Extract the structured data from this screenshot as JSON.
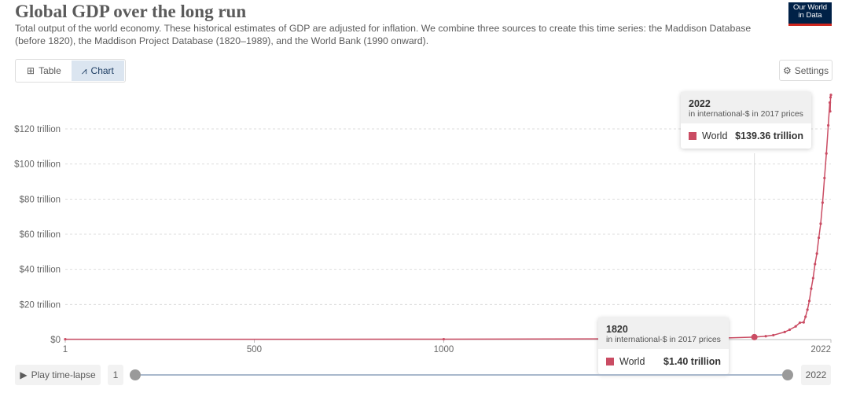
{
  "header": {
    "title": "Global GDP over the long run",
    "subtitle": "Total output of the world economy. These historical estimates of GDP are adjusted for inflation. We combine three sources to create this time series: the Maddison Database (before 1820), the Maddison Project Database (1820–1989), and the World Bank (1990 onward).",
    "logo": "Our World in Data"
  },
  "tabs": [
    {
      "label": "Table",
      "icon": "table-icon"
    },
    {
      "label": "Chart",
      "icon": "line-chart-icon",
      "active": true
    }
  ],
  "settings_label": "Settings",
  "tooltips": [
    {
      "year": "2022",
      "unit": "in international-$ in 2017 prices",
      "series": "World",
      "value": "$139.36 trillion"
    },
    {
      "year": "1820",
      "unit": "in international-$ in 2017 prices",
      "series": "World",
      "value": "$1.40 trillion"
    }
  ],
  "timeline": {
    "play_label": "Play time-lapse",
    "start": "1",
    "end": "2022"
  },
  "colors": {
    "series": "#ca4c63",
    "accent": "#002147"
  },
  "chart_data": {
    "type": "line",
    "title": "Global GDP over the long run",
    "ylim": [
      0,
      140
    ],
    "xlim": [
      1,
      2022
    ],
    "yticks": [
      0,
      20,
      40,
      60,
      80,
      100,
      120
    ],
    "ytick_labels": [
      "$0",
      "$20 trillion",
      "$40 trillion",
      "$60 trillion",
      "$80 trillion",
      "$100 trillion",
      "$120 trillion"
    ],
    "xticks": [
      1,
      500,
      1000,
      2022
    ],
    "xtick_labels": [
      "1",
      "500",
      "1000",
      "2022"
    ],
    "grid": true,
    "hover_year": 1820,
    "series": [
      {
        "name": "World",
        "color": "#ca4c63",
        "x": [
          1,
          1000,
          1500,
          1600,
          1700,
          1820,
          1850,
          1870,
          1900,
          1913,
          1929,
          1940,
          1950,
          1955,
          1960,
          1965,
          1970,
          1975,
          1980,
          1985,
          1990,
          1995,
          2000,
          2005,
          2010,
          2015,
          2019,
          2020,
          2021,
          2022
        ],
        "y": [
          0.18,
          0.2,
          0.43,
          0.6,
          0.64,
          1.4,
          1.9,
          2.5,
          4.3,
          5.6,
          7.5,
          9.6,
          9.8,
          13,
          17,
          22,
          29,
          35,
          43,
          49,
          58,
          66,
          78,
          92,
          106,
          122,
          135,
          130,
          138,
          139.36
        ]
      }
    ]
  }
}
